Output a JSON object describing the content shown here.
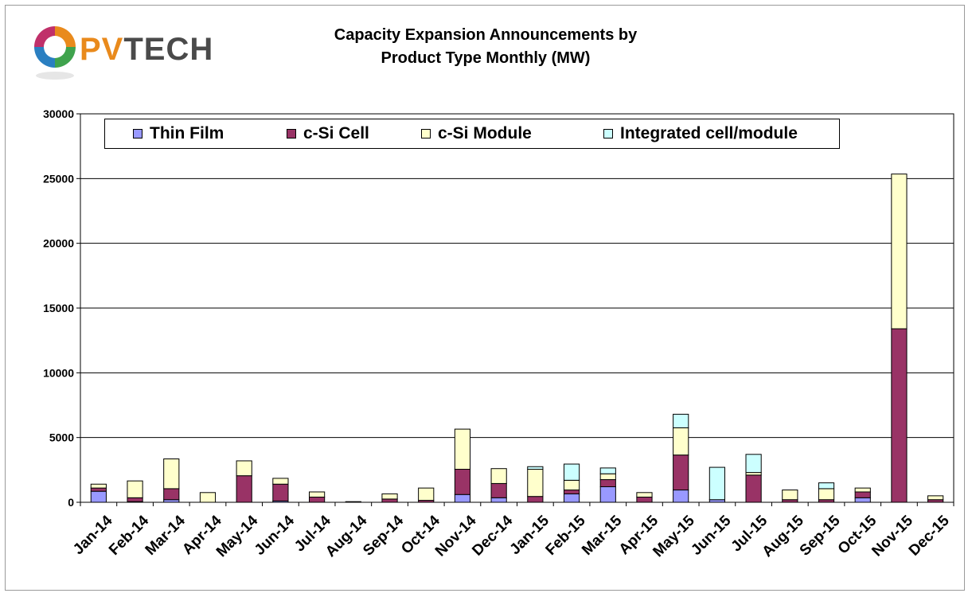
{
  "logo": {
    "text_pv": "PV",
    "text_tech": "TECH"
  },
  "chart_data": {
    "type": "bar",
    "stacked": true,
    "title": [
      "Capacity Expansion Announcements by",
      "Product Type Monthly (MW)"
    ],
    "xlabel": "",
    "ylabel": "",
    "ylim": [
      0,
      30000
    ],
    "yticks": [
      0,
      5000,
      10000,
      15000,
      20000,
      25000,
      30000
    ],
    "grid": "horizontal",
    "legend_position": "top",
    "categories": [
      "Jan-14",
      "Feb-14",
      "Mar-14",
      "Apr-14",
      "May-14",
      "Jun-14",
      "Jul-14",
      "Aug-14",
      "Sep-14",
      "Oct-14",
      "Nov-14",
      "Dec-14",
      "Jan-15",
      "Feb-15",
      "Mar-15",
      "Apr-15",
      "May-15",
      "Jun-15",
      "Jul-15",
      "Aug-15",
      "Sep-15",
      "Oct-15",
      "Nov-15",
      "Dec-15"
    ],
    "series": [
      {
        "name": "Thin Film",
        "color": "#9999ff",
        "values": [
          850,
          50,
          200,
          0,
          0,
          100,
          0,
          50,
          0,
          0,
          600,
          350,
          0,
          650,
          1200,
          0,
          950,
          200,
          0,
          0,
          0,
          350,
          0,
          0
        ]
      },
      {
        "name": "c-Si Cell",
        "color": "#993366",
        "values": [
          250,
          300,
          850,
          0,
          2050,
          1300,
          400,
          0,
          250,
          150,
          1950,
          1100,
          450,
          300,
          550,
          400,
          2700,
          0,
          2100,
          200,
          200,
          450,
          13400,
          200
        ]
      },
      {
        "name": "c-Si Module",
        "color": "#ffffcc",
        "values": [
          300,
          1300,
          2300,
          750,
          1150,
          450,
          400,
          0,
          400,
          950,
          3100,
          1150,
          2100,
          750,
          450,
          350,
          2100,
          0,
          200,
          750,
          850,
          300,
          11950,
          300
        ]
      },
      {
        "name": "Integrated cell/module",
        "color": "#ccffff",
        "values": [
          0,
          0,
          0,
          0,
          0,
          0,
          0,
          0,
          0,
          0,
          0,
          0,
          200,
          1250,
          450,
          0,
          1050,
          2500,
          1400,
          0,
          450,
          0,
          0,
          0
        ]
      }
    ]
  }
}
